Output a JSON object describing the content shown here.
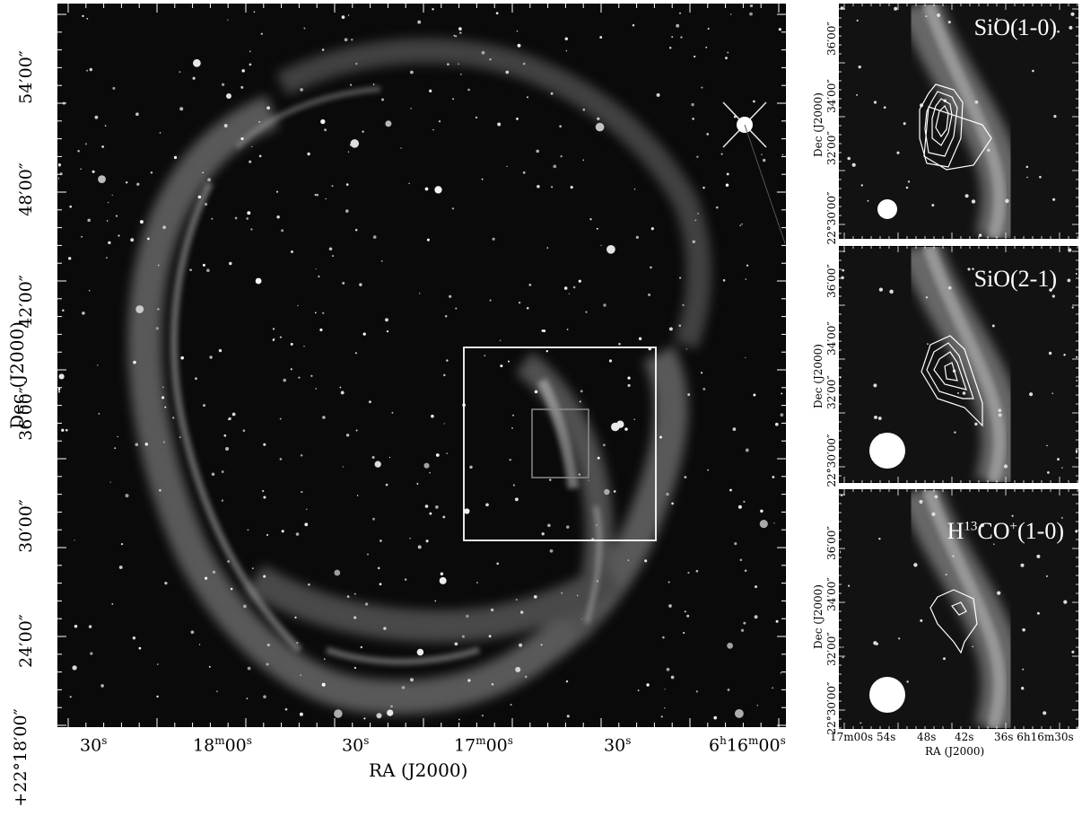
{
  "main": {
    "ylabel": "Dec (J2000)",
    "xlabel": "RA (J2000)",
    "yticks": [
      "54′00″",
      "48′00″",
      "42′00″",
      "36′00″",
      "30′00″",
      "24′00″",
      "+22°18′00″"
    ],
    "xticks": [
      {
        "main": "30",
        "sup": "s"
      },
      {
        "main": "18",
        "sup": "m",
        "tail": "00",
        "tsup": "s"
      },
      {
        "main": "30",
        "sup": "s"
      },
      {
        "main": "17",
        "sup": "m",
        "tail": "00",
        "tsup": "s"
      },
      {
        "main": "30",
        "sup": "s"
      },
      {
        "main": "6",
        "sup": "h",
        "mid": "16",
        "msup": "m",
        "tail": "00",
        "tsup": "s"
      }
    ]
  },
  "panels": [
    {
      "title_html": "SiO(1-0)",
      "yticks": [
        "36′00″",
        "34′00″",
        "32′00″",
        "22°30′00″"
      ],
      "ylabel": "Dec (J2000)"
    },
    {
      "title_html": "SiO(2-1)",
      "yticks": [
        "36′00″",
        "34′00″",
        "32′00″",
        "22°30′00″"
      ],
      "ylabel": "Dec (J2000)"
    },
    {
      "title_pre": "H",
      "title_sup": "13",
      "title_mid": "CO",
      "title_sup2": "+",
      "title_post": "(1-0)",
      "yticks": [
        "36′00″",
        "34′00″",
        "32′00″",
        "22°30′00″"
      ],
      "ylabel": "Dec (J2000)"
    }
  ],
  "side_x": {
    "ticks": [
      "17m00s",
      "54s",
      "48s",
      "42s",
      "36s 6h16m30s"
    ],
    "xlabel": "RA (J2000)"
  }
}
